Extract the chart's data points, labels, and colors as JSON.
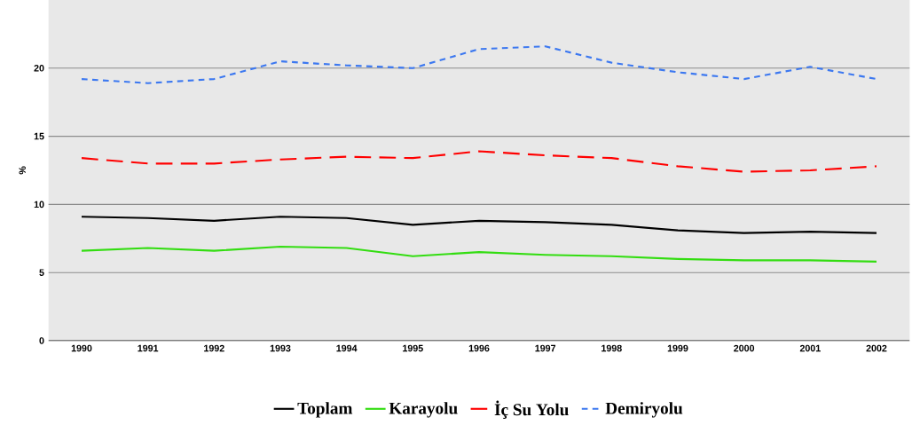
{
  "chart_data": {
    "type": "line",
    "ylabel": "%",
    "categories": [
      "1990",
      "1991",
      "1992",
      "1993",
      "1994",
      "1995",
      "1996",
      "1997",
      "1998",
      "1999",
      "2000",
      "2001",
      "2002"
    ],
    "series": [
      {
        "name": "Toplam",
        "color": "#000000",
        "line_style": "solid",
        "values": [
          9.1,
          9.0,
          8.8,
          9.1,
          9.0,
          8.5,
          8.8,
          8.7,
          8.5,
          8.1,
          7.9,
          8.0,
          7.9
        ]
      },
      {
        "name": "Karayolu",
        "color": "#33dd11",
        "line_style": "solid",
        "values": [
          6.6,
          6.8,
          6.6,
          6.9,
          6.8,
          6.2,
          6.5,
          6.3,
          6.2,
          6.0,
          5.9,
          5.9,
          5.8
        ]
      },
      {
        "name": "İç Su Yolu",
        "color": "#ff0000",
        "line_style": "dashed",
        "values": [
          13.4,
          13.0,
          13.0,
          13.3,
          13.5,
          13.4,
          13.9,
          13.6,
          13.4,
          12.8,
          12.4,
          12.5,
          12.8
        ]
      },
      {
        "name": "Demiryolu",
        "color": "#3c78f0",
        "line_style": "dotted",
        "values": [
          19.2,
          18.9,
          19.2,
          20.5,
          20.2,
          20.0,
          21.4,
          21.6,
          20.4,
          19.7,
          19.2,
          20.1,
          19.2
        ]
      }
    ],
    "ylim": [
      0,
      25
    ],
    "yticks": [
      0,
      5,
      10,
      15,
      20
    ],
    "grid": "y",
    "legend": "bottom",
    "marker": "none"
  }
}
